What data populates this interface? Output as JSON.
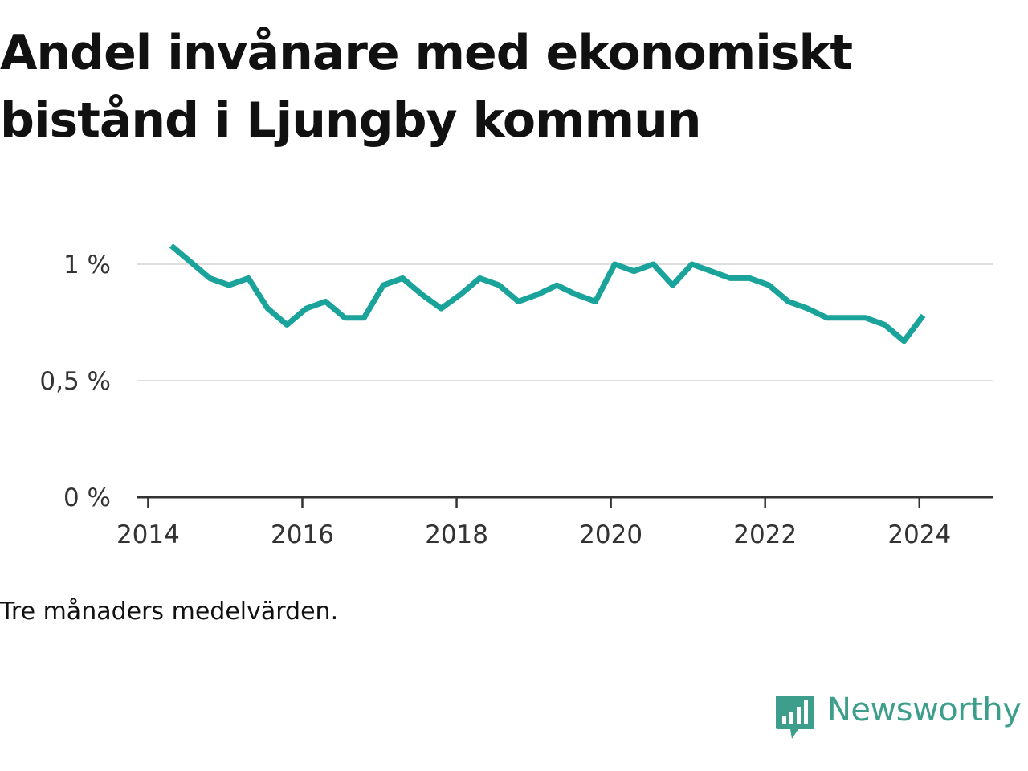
{
  "title": "Andel invånare med ekonomiskt bistånd i Ljungby kommun",
  "note": "Tre månaders medelvärden.",
  "brand": {
    "name": "Newsworthy",
    "icon": "newsworthy-chart-bubble-icon",
    "color": "#3e9e8c"
  },
  "chart_data": {
    "type": "line",
    "title": "Andel invånare med ekonomiskt bistånd i Ljungby kommun",
    "xlabel": "",
    "ylabel": "",
    "xlim": [
      2013.85,
      2024.95
    ],
    "ylim": [
      0,
      1.1
    ],
    "x_ticks": [
      {
        "value": 2014,
        "label": "2014"
      },
      {
        "value": 2016,
        "label": "2016"
      },
      {
        "value": 2018,
        "label": "2018"
      },
      {
        "value": 2020,
        "label": "2020"
      },
      {
        "value": 2022,
        "label": "2022"
      },
      {
        "value": 2024,
        "label": "2024"
      }
    ],
    "y_ticks": [
      {
        "value": 0,
        "label": "0 %"
      },
      {
        "value": 0.5,
        "label": "0,5 %"
      },
      {
        "value": 1,
        "label": "1 %"
      }
    ],
    "grid": true,
    "line_color": "#1aa39a",
    "series": [
      {
        "name": "",
        "x": [
          2014.3,
          2014.55,
          2014.8,
          2015.05,
          2015.3,
          2015.55,
          2015.8,
          2016.05,
          2016.3,
          2016.55,
          2016.8,
          2017.05,
          2017.3,
          2017.55,
          2017.8,
          2018.05,
          2018.3,
          2018.55,
          2018.8,
          2019.05,
          2019.3,
          2019.55,
          2019.8,
          2020.05,
          2020.3,
          2020.55,
          2020.8,
          2021.05,
          2021.3,
          2021.55,
          2021.8,
          2022.05,
          2022.3,
          2022.55,
          2022.8,
          2023.05,
          2023.3,
          2023.55,
          2023.8,
          2024.05
        ],
        "values": [
          1.08,
          1.01,
          0.94,
          0.91,
          0.94,
          0.81,
          0.74,
          0.81,
          0.84,
          0.77,
          0.77,
          0.91,
          0.94,
          0.87,
          0.81,
          0.87,
          0.94,
          0.91,
          0.84,
          0.87,
          0.91,
          0.87,
          0.84,
          1.0,
          0.97,
          1.0,
          0.91,
          1.0,
          0.97,
          0.94,
          0.94,
          0.91,
          0.84,
          0.81,
          0.77,
          0.77,
          0.77,
          0.74,
          0.67,
          0.78
        ]
      }
    ]
  }
}
